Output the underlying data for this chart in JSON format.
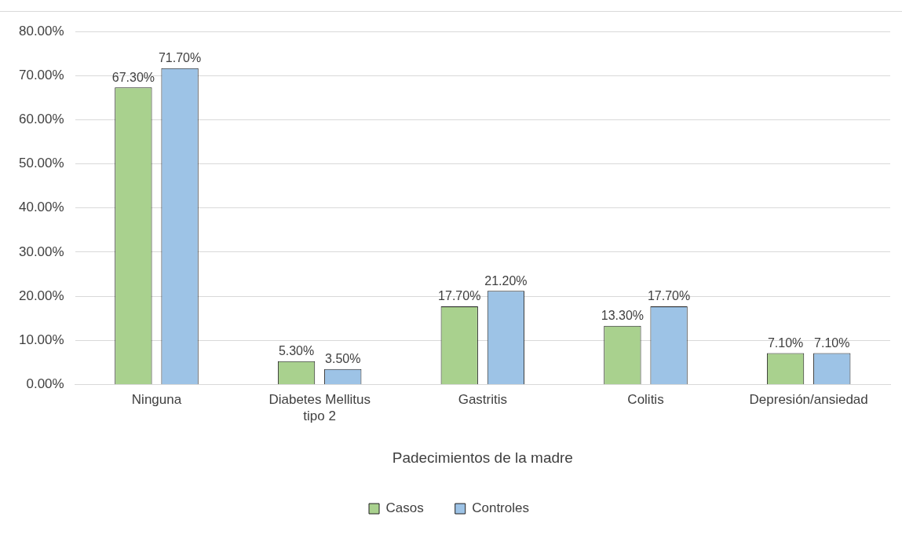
{
  "chart_data": {
    "type": "bar",
    "xlabel": "Padecimientos de la madre",
    "categories": [
      "Ninguna",
      "Diabetes Mellitus tipo 2",
      "Gastritis",
      "Colitis",
      "Depresión/ansiedad"
    ],
    "series": [
      {
        "name": "Casos",
        "color": "#a9d18e",
        "values": [
          67.3,
          5.3,
          17.7,
          13.3,
          7.1
        ],
        "value_labels": [
          "67.30%",
          "5.30%",
          "17.70%",
          "13.30%",
          "7.10%"
        ]
      },
      {
        "name": "Controles",
        "color": "#9dc3e6",
        "values": [
          71.7,
          3.5,
          21.2,
          17.7,
          7.1
        ],
        "value_labels": [
          "71.70%",
          "3.50%",
          "21.20%",
          "17.70%",
          "7.10%"
        ]
      }
    ],
    "ylim": [
      0,
      80
    ],
    "yticks": [
      {
        "value": 0,
        "label": "0.00%"
      },
      {
        "value": 10,
        "label": "10.00%"
      },
      {
        "value": 20,
        "label": "20.00%"
      },
      {
        "value": 30,
        "label": "30.00%"
      },
      {
        "value": 40,
        "label": "40.00%"
      },
      {
        "value": 50,
        "label": "50.00%"
      },
      {
        "value": 60,
        "label": "60.00%"
      },
      {
        "value": 70,
        "label": "70.00%"
      },
      {
        "value": 80,
        "label": "80.00%"
      }
    ],
    "grid": "y",
    "legend": "bottom"
  }
}
